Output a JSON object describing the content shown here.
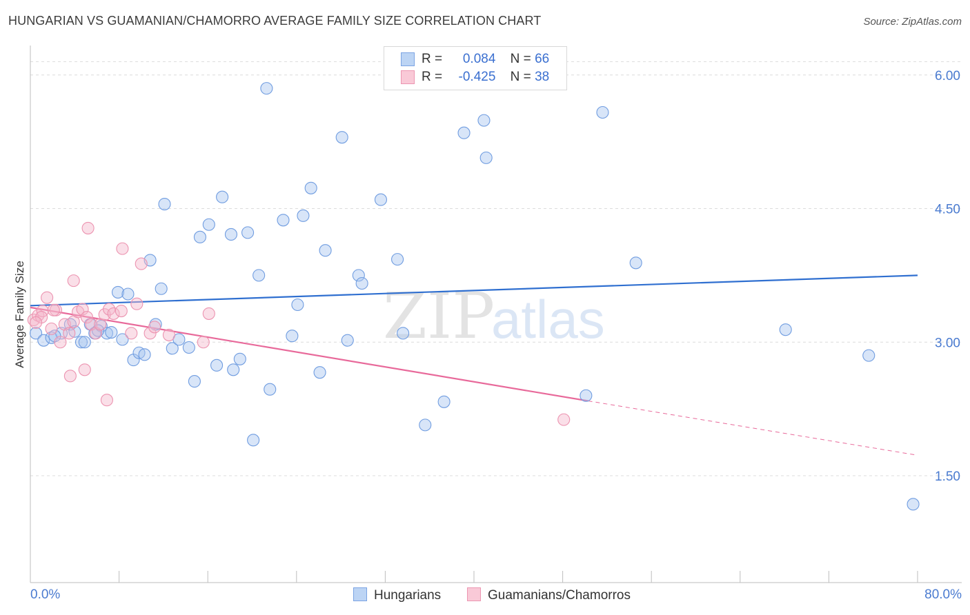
{
  "title": "HUNGARIAN VS GUAMANIAN/CHAMORRO AVERAGE FAMILY SIZE CORRELATION CHART",
  "source": "Source: ZipAtlas.com",
  "watermark": {
    "zip": "ZIP",
    "atlas": "atlas"
  },
  "legend": {
    "series1": {
      "r_label": "R =",
      "r_value": "0.084",
      "n_label": "N =",
      "n_value": "66"
    },
    "series2": {
      "r_label": "R =",
      "r_value": "-0.425",
      "n_label": "N =",
      "n_value": "38"
    }
  },
  "bottom_legend": {
    "series1": "Hungarians",
    "series2": "Guamanians/Chamorros"
  },
  "x_axis": {
    "min_label": "0.0%",
    "max_label": "80.0%"
  },
  "colors": {
    "blue": "#5b8fde",
    "blue_fill": "#a9c6f0",
    "pink": "#e8739a",
    "pink_fill": "#f5b9cc",
    "axis_text": "#4a7bd0"
  },
  "chart_data": {
    "type": "scatter",
    "title": "HUNGARIAN VS GUAMANIAN/CHAMORRO AVERAGE FAMILY SIZE CORRELATION CHART",
    "xlabel": "",
    "ylabel": "Average Family Size",
    "xlim": [
      0,
      80
    ],
    "ylim": [
      0.3,
      6.3
    ],
    "y_ticks": [
      1.5,
      3.0,
      4.5,
      6.0
    ],
    "y_tick_labels": [
      "1.50",
      "3.00",
      "4.50",
      "6.00"
    ],
    "series": [
      {
        "name": "Hungarians",
        "color": "#5b8fde",
        "r": 0.084,
        "n": 66,
        "trend": {
          "x": [
            0,
            80
          ],
          "y": [
            3.41,
            3.75
          ]
        },
        "points": [
          [
            0.5,
            3.1
          ],
          [
            1.2,
            3.02
          ],
          [
            1.9,
            3.05
          ],
          [
            2.8,
            3.1
          ],
          [
            3.6,
            3.2
          ],
          [
            4.0,
            3.12
          ],
          [
            4.6,
            3.0
          ],
          [
            4.9,
            3.0
          ],
          [
            5.4,
            3.2
          ],
          [
            5.8,
            3.1
          ],
          [
            6.4,
            3.18
          ],
          [
            6.9,
            3.1
          ],
          [
            7.3,
            3.11
          ],
          [
            7.9,
            3.56
          ],
          [
            8.3,
            3.03
          ],
          [
            8.8,
            3.54
          ],
          [
            9.3,
            2.8
          ],
          [
            9.8,
            2.88
          ],
          [
            10.3,
            2.86
          ],
          [
            10.8,
            3.92
          ],
          [
            11.3,
            3.2
          ],
          [
            11.8,
            3.6
          ],
          [
            12.1,
            4.55
          ],
          [
            12.8,
            2.93
          ],
          [
            13.4,
            3.03
          ],
          [
            14.3,
            2.94
          ],
          [
            14.8,
            2.56
          ],
          [
            15.3,
            4.18
          ],
          [
            16.1,
            4.32
          ],
          [
            16.8,
            2.74
          ],
          [
            17.3,
            4.63
          ],
          [
            18.1,
            4.21
          ],
          [
            18.3,
            2.69
          ],
          [
            18.9,
            2.81
          ],
          [
            19.6,
            4.23
          ],
          [
            20.1,
            1.9
          ],
          [
            20.6,
            3.75
          ],
          [
            21.3,
            5.85
          ],
          [
            21.6,
            2.47
          ],
          [
            22.8,
            4.37
          ],
          [
            23.6,
            3.07
          ],
          [
            24.1,
            3.42
          ],
          [
            24.6,
            4.42
          ],
          [
            25.3,
            4.73
          ],
          [
            26.1,
            2.66
          ],
          [
            26.6,
            4.03
          ],
          [
            28.1,
            5.3
          ],
          [
            28.6,
            3.02
          ],
          [
            29.6,
            3.75
          ],
          [
            29.9,
            3.66
          ],
          [
            31.6,
            4.6
          ],
          [
            33.1,
            3.93
          ],
          [
            33.6,
            3.1
          ],
          [
            35.6,
            2.07
          ],
          [
            37.3,
            2.33
          ],
          [
            39.1,
            5.35
          ],
          [
            40.9,
            5.49
          ],
          [
            41.1,
            5.07
          ],
          [
            50.1,
            2.4
          ],
          [
            51.6,
            5.58
          ],
          [
            54.6,
            3.89
          ],
          [
            68.1,
            3.14
          ],
          [
            75.6,
            2.85
          ],
          [
            79.6,
            1.18
          ],
          [
            2.2,
            3.07
          ],
          [
            6.1,
            3.13
          ]
        ]
      },
      {
        "name": "Guamanians/Chamorros",
        "color": "#e8739a",
        "r": -0.425,
        "n": 38,
        "trend": {
          "x": [
            0,
            50.3
          ],
          "y": [
            3.39,
            2.34
          ]
        },
        "trend_dashed": {
          "x": [
            50.3,
            80
          ],
          "y": [
            2.34,
            1.73
          ]
        },
        "points": [
          [
            0.3,
            3.25
          ],
          [
            0.7,
            3.3
          ],
          [
            1.1,
            3.35
          ],
          [
            1.5,
            3.5
          ],
          [
            1.9,
            3.15
          ],
          [
            2.3,
            3.36
          ],
          [
            2.7,
            3.0
          ],
          [
            3.1,
            3.2
          ],
          [
            3.5,
            3.1
          ],
          [
            3.9,
            3.23
          ],
          [
            4.3,
            3.34
          ],
          [
            4.7,
            3.37
          ],
          [
            5.1,
            3.28
          ],
          [
            5.5,
            3.2
          ],
          [
            5.9,
            3.1
          ],
          [
            6.3,
            3.2
          ],
          [
            6.7,
            3.31
          ],
          [
            7.1,
            3.37
          ],
          [
            7.5,
            3.32
          ],
          [
            8.2,
            3.35
          ],
          [
            9.1,
            3.1
          ],
          [
            9.6,
            3.43
          ],
          [
            10.0,
            3.88
          ],
          [
            10.8,
            3.1
          ],
          [
            11.2,
            3.17
          ],
          [
            12.5,
            3.08
          ],
          [
            4.9,
            2.69
          ],
          [
            3.6,
            2.62
          ],
          [
            5.2,
            4.28
          ],
          [
            6.9,
            2.35
          ],
          [
            8.3,
            4.05
          ],
          [
            3.9,
            3.69
          ],
          [
            15.6,
            3.0
          ],
          [
            16.1,
            3.32
          ],
          [
            48.1,
            2.13
          ],
          [
            2.1,
            3.36
          ],
          [
            1.0,
            3.28
          ],
          [
            0.5,
            3.22
          ]
        ]
      }
    ]
  }
}
